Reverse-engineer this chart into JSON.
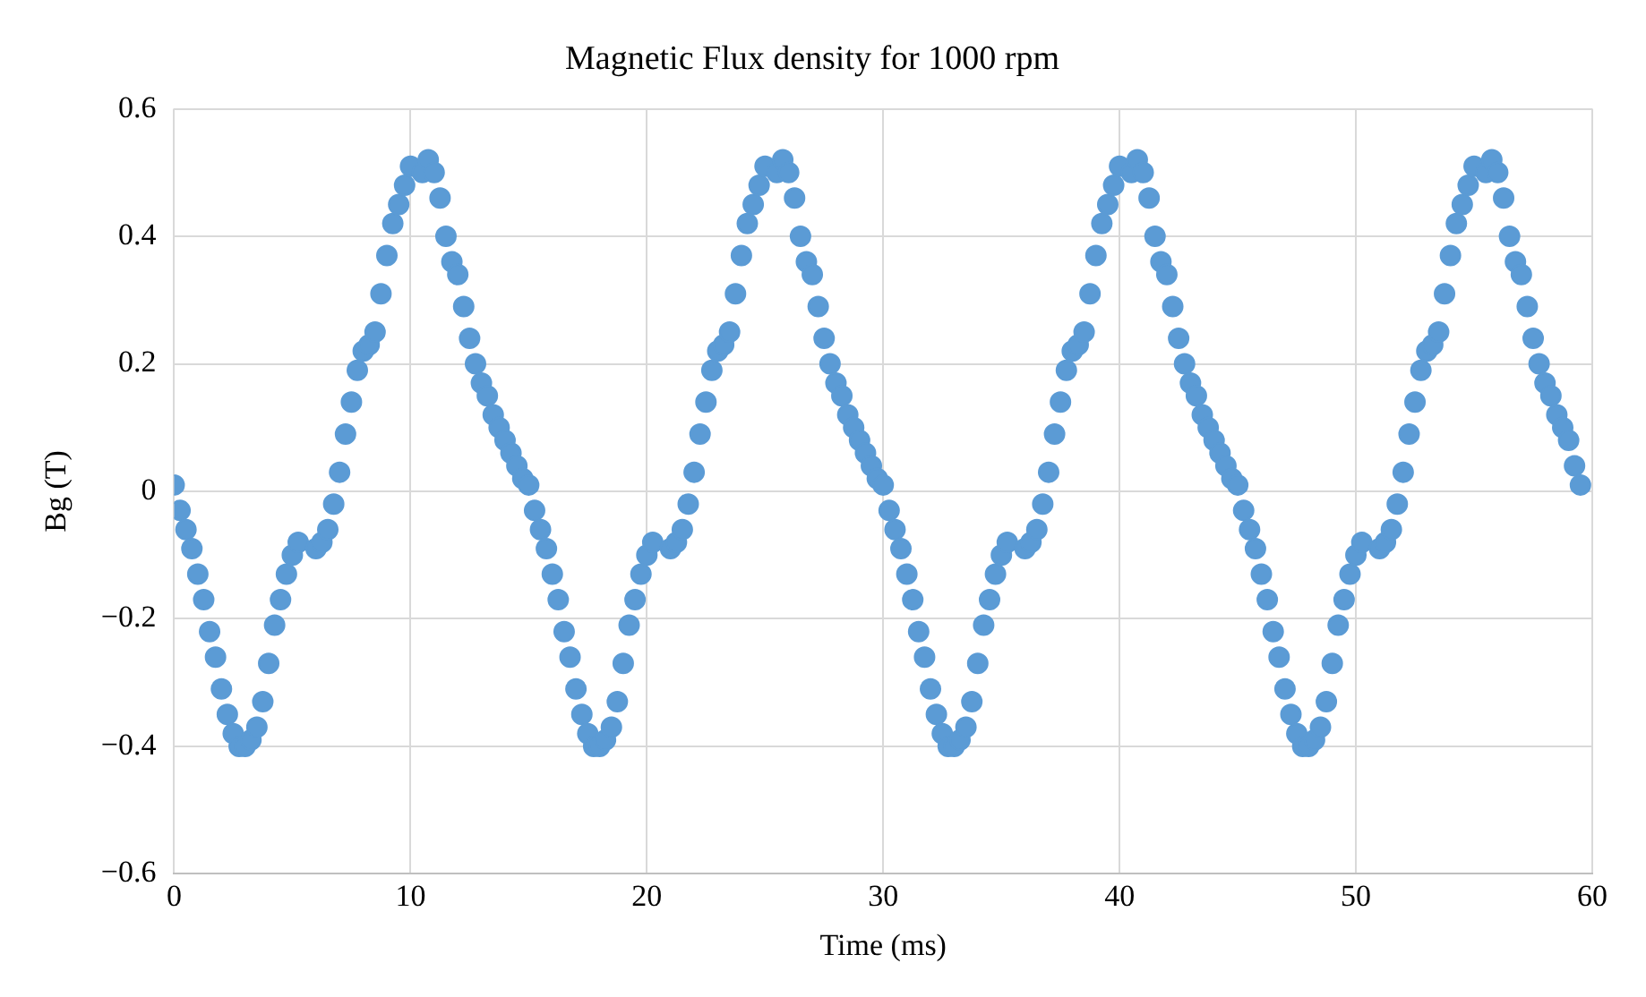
{
  "chart_data": {
    "type": "scatter",
    "title": "Magnetic Flux density for 1000 rpm",
    "xlabel": "Time (ms)",
    "ylabel": "Bg (T)",
    "xlim": [
      0,
      60
    ],
    "xticks": [
      0,
      10,
      20,
      30,
      40,
      50,
      60
    ],
    "ylim": [
      -0.6,
      0.6
    ],
    "yticks": [
      {
        "value": -0.6,
        "label": "−0.6"
      },
      {
        "value": -0.4,
        "label": "−0.4"
      },
      {
        "value": -0.2,
        "label": "−0.2"
      },
      0,
      0.2,
      0.4,
      0.6
    ],
    "grid": true,
    "marker": "circle",
    "series": [
      {
        "color": "#5b9bd5",
        "x": [
          0,
          0.25,
          0.5,
          0.75,
          1,
          1.25,
          1.5,
          1.75,
          2,
          2.25,
          2.5,
          2.75,
          3,
          3.25,
          3.5,
          3.75,
          4,
          4.25,
          4.5,
          4.75,
          5,
          5.25,
          6,
          6.25,
          6.5,
          6.75,
          7,
          7.25,
          7.5,
          7.75,
          8,
          8.25,
          8.5,
          8.75,
          9,
          9.25,
          9.5,
          9.75,
          10,
          10.5,
          10.75,
          11,
          11.25,
          11.5,
          11.75,
          12,
          12.25,
          12.5,
          12.75,
          13,
          13.25,
          13.5,
          13.75,
          14,
          14.25,
          14.5,
          14.75,
          15,
          15.25,
          15.5,
          15.75,
          16,
          16.25,
          16.5,
          16.75,
          17,
          17.25,
          17.5,
          17.75,
          18,
          18.25,
          18.5,
          18.75,
          19,
          19.25,
          19.5,
          19.75,
          20,
          20.25,
          21,
          21.25,
          21.5,
          21.75,
          22,
          22.25,
          22.5,
          22.75,
          23,
          23.25,
          23.5,
          23.75,
          24,
          24.25,
          24.5,
          24.75,
          25,
          25.5,
          25.75,
          26,
          26.25,
          26.5,
          26.75,
          27,
          27.25,
          27.5,
          27.75,
          28,
          28.25,
          28.5,
          28.75,
          29,
          29.25,
          29.5,
          29.75,
          30,
          30.25,
          30.5,
          30.75,
          31,
          31.25,
          31.5,
          31.75,
          32,
          32.25,
          32.5,
          32.75,
          33,
          33.25,
          33.5,
          33.75,
          34,
          34.25,
          34.5,
          34.75,
          35,
          35.25,
          36,
          36.25,
          36.5,
          36.75,
          37,
          37.25,
          37.5,
          37.75,
          38,
          38.25,
          38.5,
          38.75,
          39,
          39.25,
          39.5,
          39.75,
          40,
          40.5,
          40.75,
          41,
          41.25,
          41.5,
          41.75,
          42,
          42.25,
          42.5,
          42.75,
          43,
          43.25,
          43.5,
          43.75,
          44,
          44.25,
          44.5,
          44.75,
          45,
          45.25,
          45.5,
          45.75,
          46,
          46.25,
          46.5,
          46.75,
          47,
          47.25,
          47.5,
          47.75,
          48,
          48.25,
          48.5,
          48.75,
          49,
          49.25,
          49.5,
          49.75,
          50,
          50.25,
          51,
          51.25,
          51.5,
          51.75,
          52,
          52.25,
          52.5,
          52.75,
          53,
          53.25,
          53.5,
          53.75,
          54,
          54.25,
          54.5,
          54.75,
          55,
          55.5,
          55.75,
          56,
          56.25,
          56.5,
          56.75,
          57,
          57.25,
          57.5,
          57.75,
          58,
          58.25,
          58.5,
          58.75,
          59,
          59.25,
          59.5
        ],
        "values": [
          0.01,
          -0.03,
          -0.06,
          -0.09,
          -0.13,
          -0.17,
          -0.22,
          -0.26,
          -0.31,
          -0.35,
          -0.38,
          -0.4,
          -0.4,
          -0.39,
          -0.37,
          -0.33,
          -0.27,
          -0.21,
          -0.17,
          -0.13,
          -0.1,
          -0.08,
          -0.09,
          -0.08,
          -0.06,
          -0.02,
          0.03,
          0.09,
          0.14,
          0.19,
          0.22,
          0.23,
          0.25,
          0.31,
          0.37,
          0.42,
          0.45,
          0.48,
          0.51,
          0.5,
          0.52,
          0.5,
          0.46,
          0.4,
          0.36,
          0.34,
          0.29,
          0.24,
          0.2,
          0.17,
          0.15,
          0.12,
          0.1,
          0.08,
          0.06,
          0.04,
          0.02,
          0.01,
          -0.03,
          -0.06,
          -0.09,
          -0.13,
          -0.17,
          -0.22,
          -0.26,
          -0.31,
          -0.35,
          -0.38,
          -0.4,
          -0.4,
          -0.39,
          -0.37,
          -0.33,
          -0.27,
          -0.21,
          -0.17,
          -0.13,
          -0.1,
          -0.08,
          -0.09,
          -0.08,
          -0.06,
          -0.02,
          0.03,
          0.09,
          0.14,
          0.19,
          0.22,
          0.23,
          0.25,
          0.31,
          0.37,
          0.42,
          0.45,
          0.48,
          0.51,
          0.5,
          0.52,
          0.5,
          0.46,
          0.4,
          0.36,
          0.34,
          0.29,
          0.24,
          0.2,
          0.17,
          0.15,
          0.12,
          0.1,
          0.08,
          0.06,
          0.04,
          0.02,
          0.01,
          -0.03,
          -0.06,
          -0.09,
          -0.13,
          -0.17,
          -0.22,
          -0.26,
          -0.31,
          -0.35,
          -0.38,
          -0.4,
          -0.4,
          -0.39,
          -0.37,
          -0.33,
          -0.27,
          -0.21,
          -0.17,
          -0.13,
          -0.1,
          -0.08,
          -0.09,
          -0.08,
          -0.06,
          -0.02,
          0.03,
          0.09,
          0.14,
          0.19,
          0.22,
          0.23,
          0.25,
          0.31,
          0.37,
          0.42,
          0.45,
          0.48,
          0.51,
          0.5,
          0.52,
          0.5,
          0.46,
          0.4,
          0.36,
          0.34,
          0.29,
          0.24,
          0.2,
          0.17,
          0.15,
          0.12,
          0.1,
          0.08,
          0.06,
          0.04,
          0.02,
          0.01,
          -0.03,
          -0.06,
          -0.09,
          -0.13,
          -0.17,
          -0.22,
          -0.26,
          -0.31,
          -0.35,
          -0.38,
          -0.4,
          -0.4,
          -0.39,
          -0.37,
          -0.33,
          -0.27,
          -0.21,
          -0.17,
          -0.13,
          -0.1,
          -0.08,
          -0.09,
          -0.08,
          -0.06,
          -0.02,
          0.03,
          0.09,
          0.14,
          0.19,
          0.22,
          0.23,
          0.25,
          0.31,
          0.37,
          0.42,
          0.45,
          0.48,
          0.51,
          0.5,
          0.52,
          0.5,
          0.46,
          0.4,
          0.36,
          0.34,
          0.29,
          0.24,
          0.2,
          0.17,
          0.15,
          0.12,
          0.1,
          0.08,
          0.04,
          0.01
        ]
      }
    ]
  }
}
